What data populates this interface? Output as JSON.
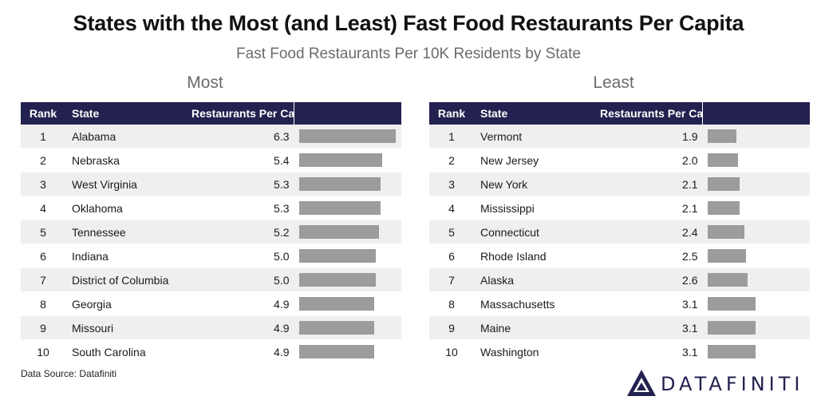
{
  "title": "States with the Most (and Least) Fast Food Restaurants Per Capita",
  "subtitle": "Fast Food Restaurants Per 10K Residents by State",
  "columns": {
    "rank": "Rank",
    "state": "State",
    "value": "Restaurants Per Capita"
  },
  "footnote": "Data Source: Datafiniti",
  "logo": {
    "text": "DATAFINITI",
    "color": "#22214f"
  },
  "colors": {
    "header": "#22214f",
    "bar": "#9c9c9c",
    "stripe": "#efefef"
  },
  "chart_data": [
    {
      "type": "bar",
      "title": "Most",
      "xlim": [
        0,
        6.3
      ],
      "ranks": [
        1,
        2,
        3,
        4,
        5,
        6,
        7,
        8,
        9,
        10
      ],
      "categories": [
        "Alabama",
        "Nebraska",
        "West Virginia",
        "Oklahoma",
        "Tennessee",
        "Indiana",
        "District of Columbia",
        "Georgia",
        "Missouri",
        "South Carolina"
      ],
      "values": [
        6.3,
        5.4,
        5.3,
        5.3,
        5.2,
        5.0,
        5.0,
        4.9,
        4.9,
        4.9
      ]
    },
    {
      "type": "bar",
      "title": "Least",
      "xlim": [
        0,
        6.3
      ],
      "ranks": [
        1,
        2,
        3,
        4,
        5,
        6,
        7,
        8,
        9,
        10
      ],
      "categories": [
        "Vermont",
        "New Jersey",
        "New York",
        "Mississippi",
        "Connecticut",
        "Rhode Island",
        "Alaska",
        "Massachusetts",
        "Maine",
        "Washington"
      ],
      "values": [
        1.9,
        2.0,
        2.1,
        2.1,
        2.4,
        2.5,
        2.6,
        3.1,
        3.1,
        3.1
      ]
    }
  ]
}
